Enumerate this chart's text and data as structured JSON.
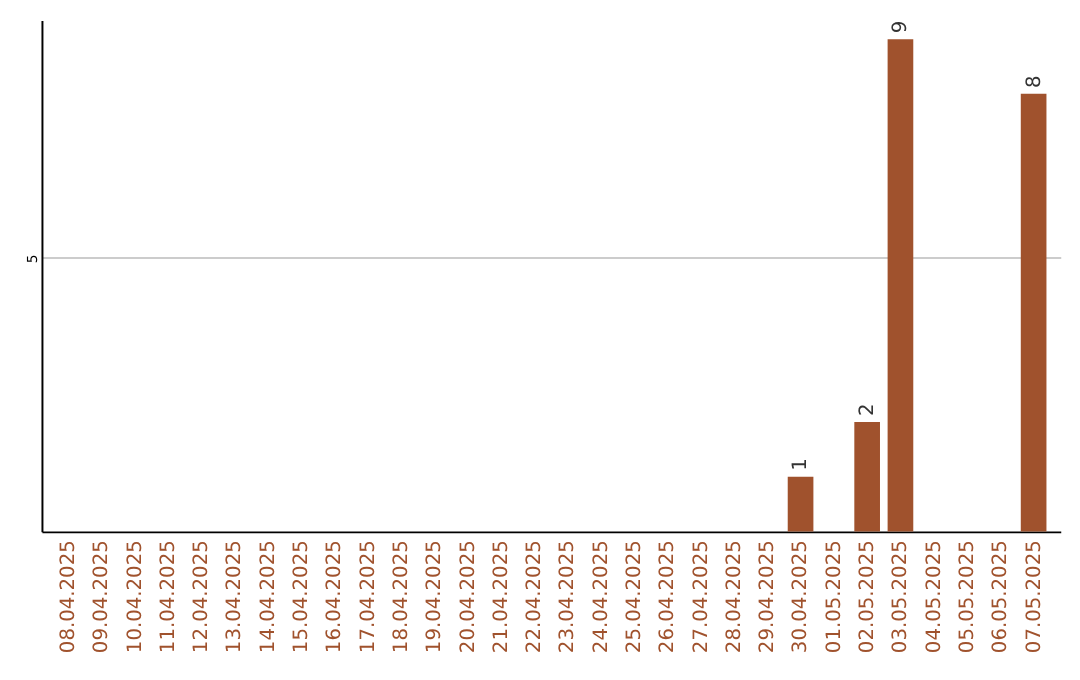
{
  "chart_data": {
    "type": "bar",
    "categories": [
      "08.04.2025",
      "09.04.2025",
      "10.04.2025",
      "11.04.2025",
      "12.04.2025",
      "13.04.2025",
      "14.04.2025",
      "15.04.2025",
      "16.04.2025",
      "17.04.2025",
      "18.04.2025",
      "19.04.2025",
      "20.04.2025",
      "21.04.2025",
      "22.04.2025",
      "23.04.2025",
      "24.04.2025",
      "25.04.2025",
      "26.04.2025",
      "27.04.2025",
      "28.04.2025",
      "29.04.2025",
      "30.04.2025",
      "01.05.2025",
      "02.05.2025",
      "03.05.2025",
      "04.05.2025",
      "05.05.2025",
      "06.05.2025",
      "07.05.2025"
    ],
    "values": [
      null,
      null,
      null,
      null,
      null,
      null,
      null,
      null,
      null,
      null,
      null,
      null,
      null,
      null,
      null,
      null,
      null,
      null,
      null,
      null,
      null,
      null,
      1,
      null,
      2,
      9,
      null,
      null,
      null,
      8
    ],
    "value_labels": [
      null,
      null,
      null,
      null,
      null,
      null,
      null,
      null,
      null,
      null,
      null,
      null,
      null,
      null,
      null,
      null,
      null,
      null,
      null,
      null,
      null,
      null,
      "1",
      null,
      "2",
      "9",
      null,
      null,
      null,
      "8"
    ],
    "color": "#a0522d",
    "ylim": [
      0,
      9.35
    ],
    "yticks": [
      5
    ],
    "grid": "y",
    "legend": false
  }
}
